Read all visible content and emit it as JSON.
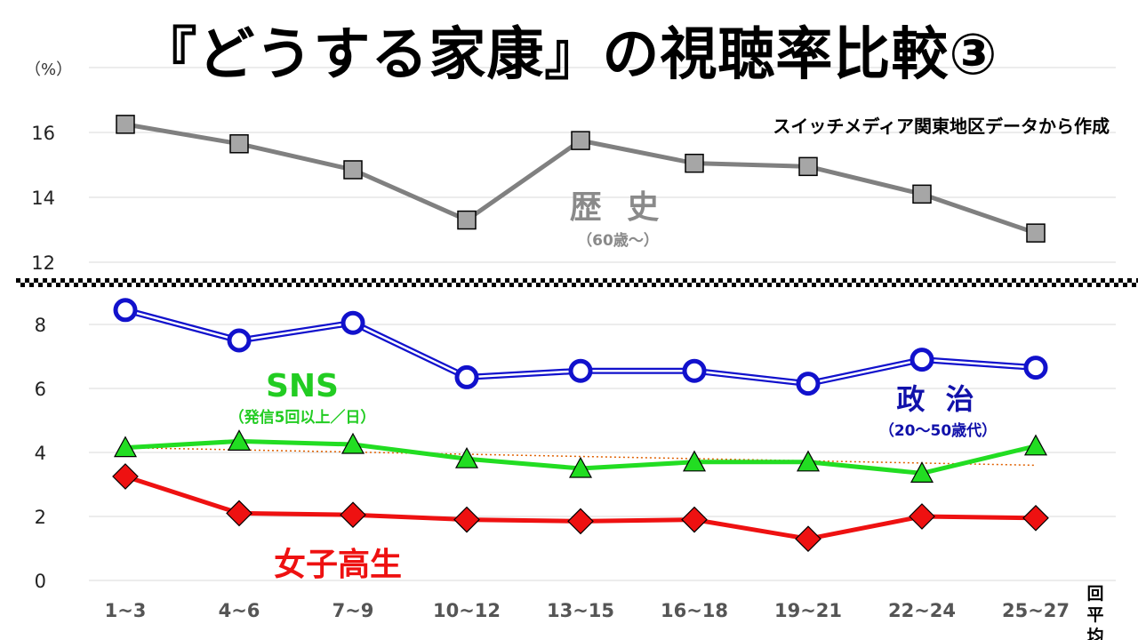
{
  "title": "『どうする家康』の視聴率比較③",
  "source_note": "スイッチメディア関東地区データから作成",
  "y_unit": "（%）",
  "x_unit_line1": "回",
  "x_unit_line2": "平均",
  "chart_data": {
    "type": "line",
    "categories": [
      "1~3",
      "4~6",
      "7~9",
      "10~12",
      "13~15",
      "16~18",
      "19~21",
      "22~24",
      "25~27"
    ],
    "upper_panel": {
      "y_ticks": [
        12,
        14,
        16
      ],
      "ylim": [
        11.9,
        17.5
      ],
      "series": [
        {
          "key": "history",
          "name": "歴 史",
          "sub": "（60歳～）",
          "color": "#808080",
          "marker": "square",
          "values": [
            16.25,
            15.65,
            14.85,
            13.3,
            15.75,
            15.05,
            14.95,
            14.1,
            12.9
          ]
        }
      ]
    },
    "lower_panel": {
      "y_ticks": [
        0,
        2,
        4,
        6,
        8
      ],
      "ylim": [
        0,
        8.7
      ],
      "series": [
        {
          "key": "politics",
          "name": "政 治",
          "sub": "（20～50歳代）",
          "color": "#1111cc",
          "marker": "circle",
          "values": [
            8.45,
            7.5,
            8.05,
            6.35,
            6.55,
            6.55,
            6.15,
            6.9,
            6.65
          ]
        },
        {
          "key": "sns",
          "name": "SNS",
          "sub": "（発信5回以上／日）",
          "color": "#22dd22",
          "marker": "triangle",
          "values": [
            4.15,
            4.35,
            4.25,
            3.8,
            3.5,
            3.7,
            3.7,
            3.35,
            4.2
          ]
        },
        {
          "key": "jk",
          "name": "女子高生",
          "sub": "",
          "color": "#ee1111",
          "marker": "diamond",
          "values": [
            3.25,
            2.1,
            2.05,
            1.9,
            1.85,
            1.9,
            1.3,
            2.0,
            1.95
          ]
        }
      ],
      "trendline": {
        "of": "sns",
        "color": "#e06000",
        "start": 4.15,
        "end": 3.6
      }
    }
  }
}
